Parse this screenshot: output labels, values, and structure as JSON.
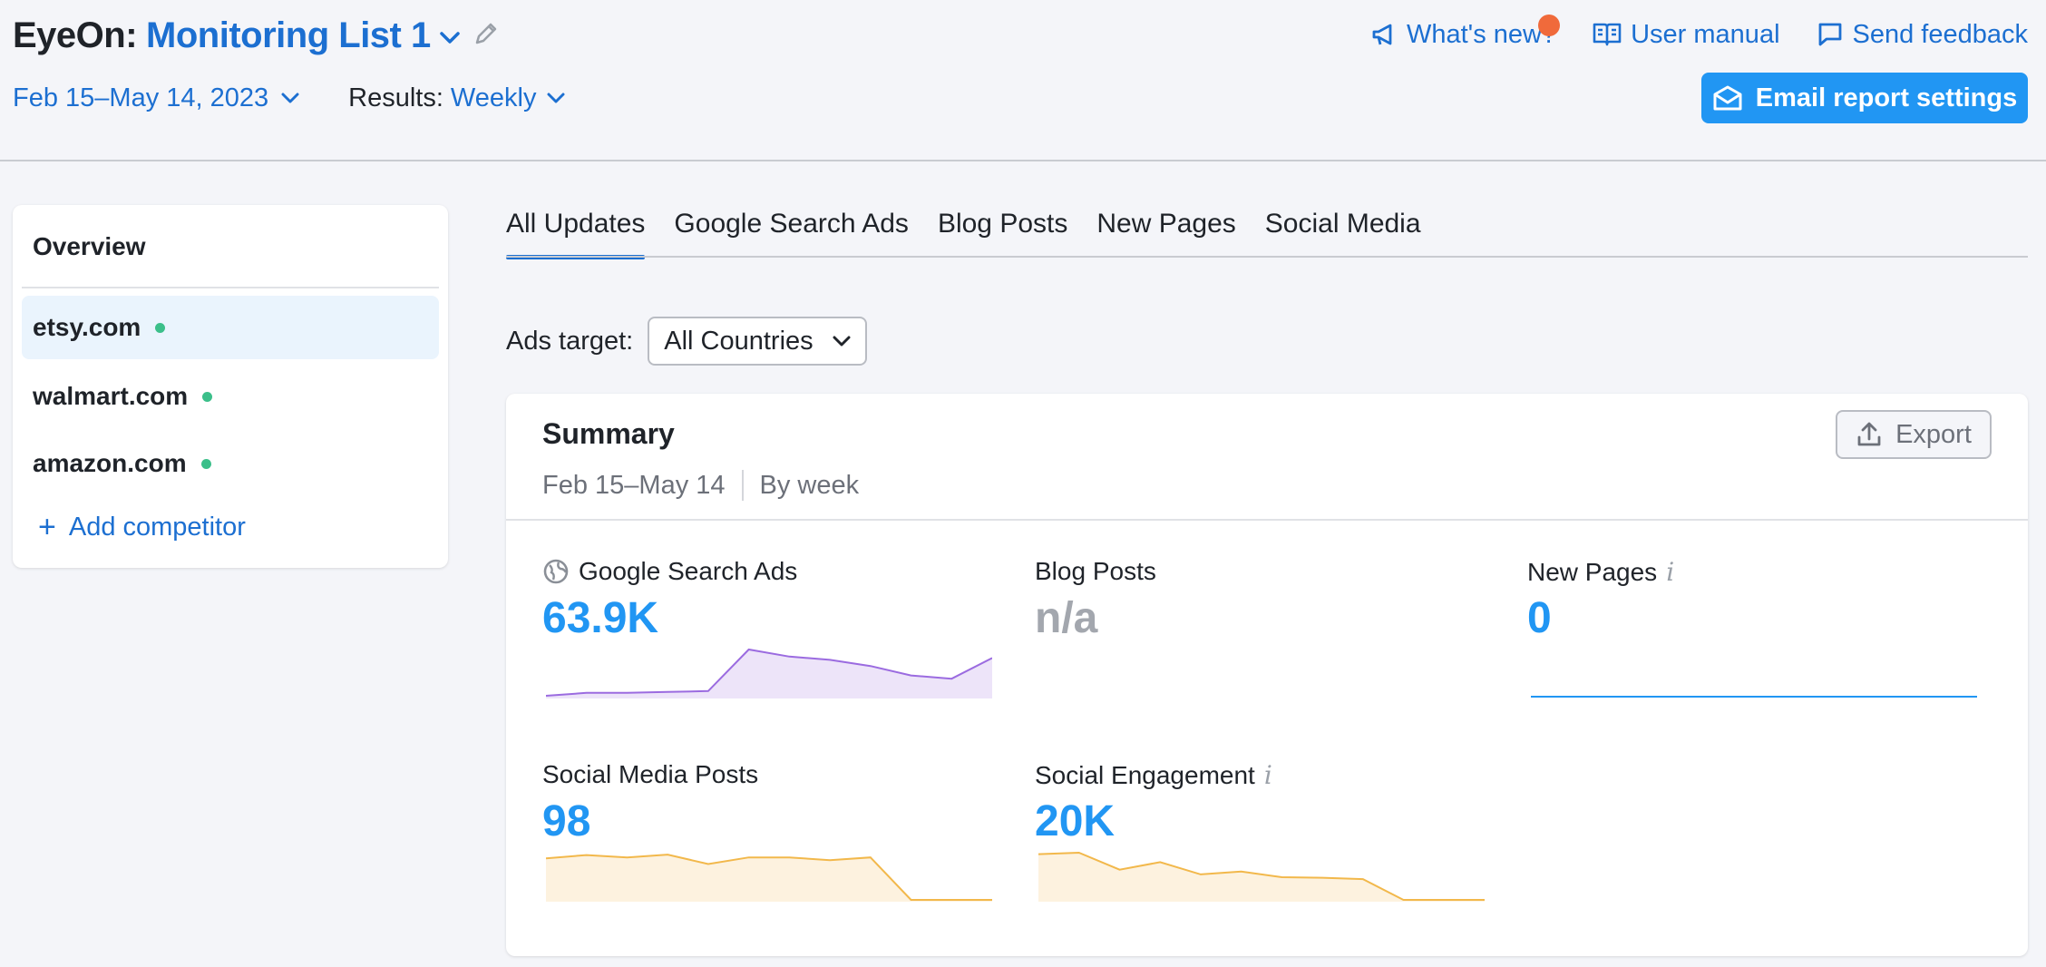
{
  "header": {
    "app": "EyeOn:",
    "list_name": "Monitoring List 1",
    "date_range": "Feb 15–May 14, 2023",
    "results_label": "Results:",
    "results_value": "Weekly",
    "links": {
      "whats_new": "What's new?",
      "user_manual": "User manual",
      "send_feedback": "Send feedback"
    },
    "email_button": "Email report settings"
  },
  "sidebar": {
    "title": "Overview",
    "items": [
      {
        "label": "etsy.com",
        "active": true
      },
      {
        "label": "walmart.com",
        "active": false
      },
      {
        "label": "amazon.com",
        "active": false
      }
    ],
    "add_competitor": "Add competitor"
  },
  "tabs": [
    {
      "label": "All Updates",
      "active": true
    },
    {
      "label": "Google Search Ads",
      "active": false
    },
    {
      "label": "Blog Posts",
      "active": false
    },
    {
      "label": "New Pages",
      "active": false
    },
    {
      "label": "Social Media",
      "active": false
    }
  ],
  "ads_target": {
    "label": "Ads target:",
    "value": "All Countries"
  },
  "summary": {
    "title": "Summary",
    "period": "Feb 15–May 14",
    "granularity": "By week",
    "export": "Export",
    "metrics": {
      "google_search_ads": {
        "label": "Google Search Ads",
        "value": "63.9K",
        "trend": [
          2,
          8,
          8,
          10,
          12,
          100,
          85,
          78,
          65,
          45,
          38,
          82
        ],
        "color": "#9b6be0"
      },
      "blog_posts": {
        "label": "Blog Posts",
        "value": "n/a"
      },
      "new_pages": {
        "label": "New Pages",
        "value": "0",
        "trend": [
          0,
          0,
          0,
          0,
          0,
          0,
          0,
          0,
          0,
          0,
          0,
          0
        ],
        "color": "#2196f3"
      },
      "social_media_posts": {
        "label": "Social Media Posts",
        "value": "98",
        "trend": [
          88,
          95,
          90,
          96,
          76,
          90,
          90,
          84,
          90,
          0,
          0,
          0
        ],
        "color": "#f2b84b"
      },
      "social_engagement": {
        "label": "Social Engagement",
        "value": "20K",
        "trend": [
          97,
          100,
          64,
          80,
          54,
          60,
          48,
          47,
          44,
          0,
          0,
          0
        ],
        "color": "#f2b84b"
      }
    }
  },
  "colors": {
    "accent": "#1c6fd1",
    "primary_button": "#2196f3",
    "status_dot": "#3bbf8a",
    "notification": "#f06a3b"
  }
}
